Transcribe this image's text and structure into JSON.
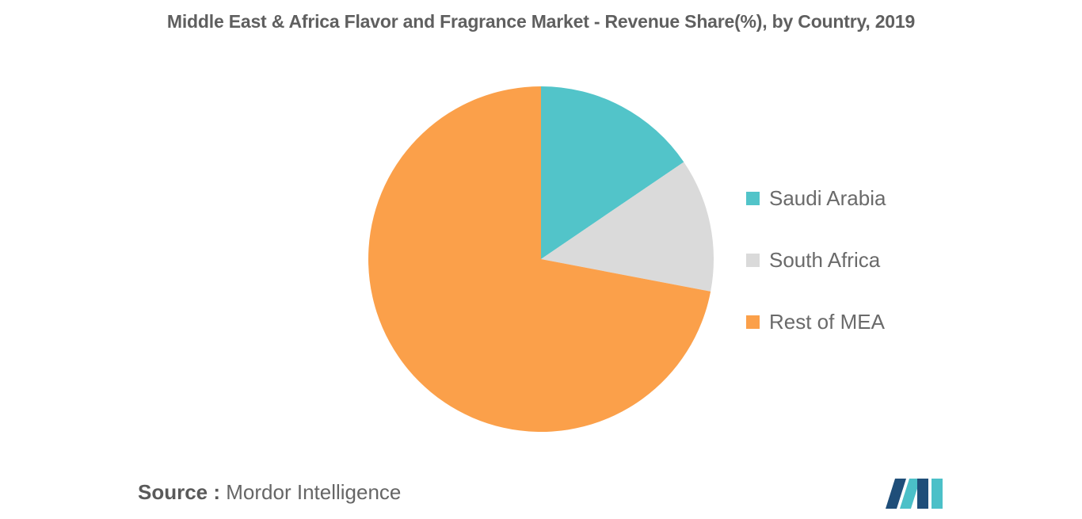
{
  "chart_data": {
    "type": "pie",
    "title": "Middle East & Africa Flavor and Fragrance Market - Revenue Share(%), by Country, 2019",
    "categories": [
      "Saudi Arabia",
      "South Africa",
      "Rest of MEA"
    ],
    "values": [
      15.5,
      12.5,
      72.0
    ],
    "colors": [
      "#52c4c9",
      "#dadada",
      "#fba04a"
    ],
    "start_angle_deg": 0,
    "direction": "clockwise",
    "legend_position": "right"
  },
  "source": {
    "prefix": "Source :",
    "text": "Mordor Intelligence"
  },
  "logo": {
    "icon": "mordor-intelligence-logo-icon",
    "colors": [
      "#1f4e79",
      "#4bc0c8"
    ]
  }
}
